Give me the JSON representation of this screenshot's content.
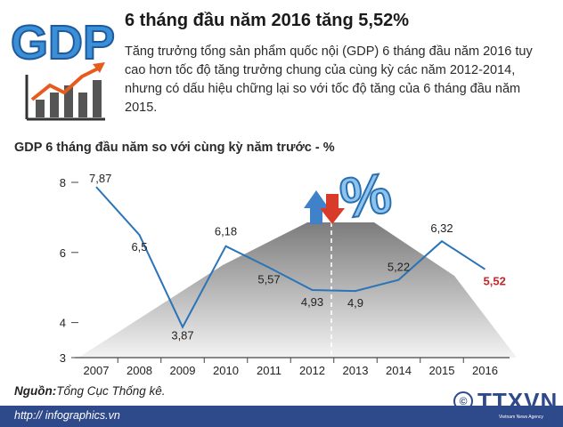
{
  "header": {
    "logo_text": "GDP",
    "headline": "6 tháng đầu năm 2016 tăng 5,52%",
    "description": "Tăng trưởng tổng sản phẩm quốc nội (GDP) 6 tháng đầu năm 2016 tuy cao hơn tốc độ tăng trưởng chung của cùng kỳ các năm 2012-2014, nhưng có dấu hiệu chững lại so với tốc độ tăng của 6 tháng đầu năm 2015."
  },
  "chart_data": {
    "type": "line",
    "title": "GDP 6 tháng đầu năm so với cùng kỳ năm trước - %",
    "categories": [
      "2007",
      "2008",
      "2009",
      "2010",
      "2011",
      "2012",
      "2013",
      "2014",
      "2015",
      "2016"
    ],
    "values": [
      7.87,
      6.5,
      3.87,
      6.18,
      5.57,
      4.93,
      4.9,
      5.22,
      6.32,
      5.52
    ],
    "value_labels": [
      "7,87",
      "6,5",
      "3,87",
      "6,18",
      "5,57",
      "4,93",
      "4,9",
      "5,22",
      "6,32",
      "5,52"
    ],
    "ylim": [
      3,
      8
    ],
    "yticks": [
      "3",
      "4",
      "6",
      "8"
    ],
    "highlight_index": 9,
    "colors": {
      "line": "#2a74b8",
      "highlight": "#c62828",
      "axis": "#444444"
    },
    "decoration": {
      "percent_sign": "%"
    }
  },
  "source": {
    "label": "Nguồn:",
    "value": "Tổng Cục Thống kê."
  },
  "footer": {
    "url": "http:// infographics.vn",
    "agency": "TTXVN",
    "agency_sub": "Vietnam News Agency"
  }
}
